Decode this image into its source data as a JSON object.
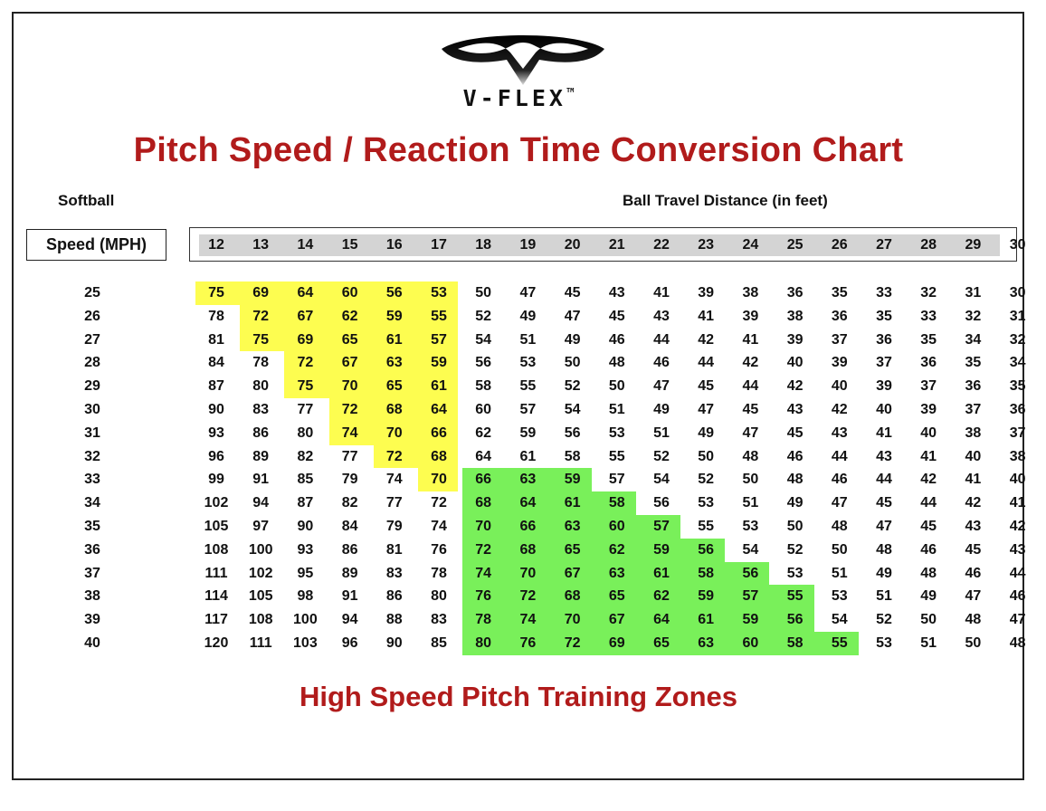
{
  "brand": {
    "name": "V-FLEX",
    "trademark": "TM"
  },
  "chart_data": {
    "type": "table",
    "title": "Pitch Speed / Reaction Time Conversion Chart",
    "sport": "Softball",
    "row_header": "Speed (MPH)",
    "column_header": "Ball Travel Distance (in feet)",
    "footer": "High Speed Pitch Training Zones",
    "columns": [
      12,
      13,
      14,
      15,
      16,
      17,
      18,
      19,
      20,
      21,
      22,
      23,
      24,
      25,
      26,
      27,
      28,
      29,
      30
    ],
    "rows": [
      {
        "speed": 25,
        "values": [
          75,
          69,
          64,
          60,
          56,
          53,
          50,
          47,
          45,
          43,
          41,
          39,
          38,
          36,
          35,
          33,
          32,
          31,
          30
        ]
      },
      {
        "speed": 26,
        "values": [
          78,
          72,
          67,
          62,
          59,
          55,
          52,
          49,
          47,
          45,
          43,
          41,
          39,
          38,
          36,
          35,
          33,
          32,
          31
        ]
      },
      {
        "speed": 27,
        "values": [
          81,
          75,
          69,
          65,
          61,
          57,
          54,
          51,
          49,
          46,
          44,
          42,
          41,
          39,
          37,
          36,
          35,
          34,
          32
        ]
      },
      {
        "speed": 28,
        "values": [
          84,
          78,
          72,
          67,
          63,
          59,
          56,
          53,
          50,
          48,
          46,
          44,
          42,
          40,
          39,
          37,
          36,
          35,
          34
        ]
      },
      {
        "speed": 29,
        "values": [
          87,
          80,
          75,
          70,
          65,
          61,
          58,
          55,
          52,
          50,
          47,
          45,
          44,
          42,
          40,
          39,
          37,
          36,
          35
        ]
      },
      {
        "speed": 30,
        "values": [
          90,
          83,
          77,
          72,
          68,
          64,
          60,
          57,
          54,
          51,
          49,
          47,
          45,
          43,
          42,
          40,
          39,
          37,
          36
        ]
      },
      {
        "speed": 31,
        "values": [
          93,
          86,
          80,
          74,
          70,
          66,
          62,
          59,
          56,
          53,
          51,
          49,
          47,
          45,
          43,
          41,
          40,
          38,
          37
        ]
      },
      {
        "speed": 32,
        "values": [
          96,
          89,
          82,
          77,
          72,
          68,
          64,
          61,
          58,
          55,
          52,
          50,
          48,
          46,
          44,
          43,
          41,
          40,
          38
        ]
      },
      {
        "speed": 33,
        "values": [
          99,
          91,
          85,
          79,
          74,
          70,
          66,
          63,
          59,
          57,
          54,
          52,
          50,
          48,
          46,
          44,
          42,
          41,
          40
        ]
      },
      {
        "speed": 34,
        "values": [
          102,
          94,
          87,
          82,
          77,
          72,
          68,
          64,
          61,
          58,
          56,
          53,
          51,
          49,
          47,
          45,
          44,
          42,
          41
        ]
      },
      {
        "speed": 35,
        "values": [
          105,
          97,
          90,
          84,
          79,
          74,
          70,
          66,
          63,
          60,
          57,
          55,
          53,
          50,
          48,
          47,
          45,
          43,
          42
        ]
      },
      {
        "speed": 36,
        "values": [
          108,
          100,
          93,
          86,
          81,
          76,
          72,
          68,
          65,
          62,
          59,
          56,
          54,
          52,
          50,
          48,
          46,
          45,
          43
        ]
      },
      {
        "speed": 37,
        "values": [
          111,
          102,
          95,
          89,
          83,
          78,
          74,
          70,
          67,
          63,
          61,
          58,
          56,
          53,
          51,
          49,
          48,
          46,
          44
        ]
      },
      {
        "speed": 38,
        "values": [
          114,
          105,
          98,
          91,
          86,
          80,
          76,
          72,
          68,
          65,
          62,
          59,
          57,
          55,
          53,
          51,
          49,
          47,
          46
        ]
      },
      {
        "speed": 39,
        "values": [
          117,
          108,
          100,
          94,
          88,
          83,
          78,
          74,
          70,
          67,
          64,
          61,
          59,
          56,
          54,
          52,
          50,
          48,
          47
        ]
      },
      {
        "speed": 40,
        "values": [
          120,
          111,
          103,
          96,
          90,
          85,
          80,
          76,
          72,
          69,
          65,
          63,
          60,
          58,
          55,
          53,
          51,
          50,
          48
        ]
      }
    ],
    "zones": [
      {
        "color": "#fdfd50",
        "spans": [
          [
            0,
            0,
            5
          ],
          [
            1,
            1,
            5
          ],
          [
            2,
            1,
            5
          ],
          [
            3,
            2,
            5
          ],
          [
            4,
            2,
            5
          ],
          [
            5,
            3,
            5
          ],
          [
            6,
            3,
            5
          ],
          [
            7,
            4,
            5
          ],
          [
            8,
            5,
            5
          ]
        ]
      },
      {
        "color": "#79f05a",
        "spans": [
          [
            8,
            6,
            8
          ],
          [
            9,
            6,
            9
          ],
          [
            10,
            6,
            10
          ],
          [
            11,
            6,
            11
          ],
          [
            12,
            6,
            12
          ],
          [
            13,
            6,
            13
          ],
          [
            14,
            6,
            13
          ],
          [
            15,
            6,
            14
          ]
        ]
      }
    ]
  }
}
